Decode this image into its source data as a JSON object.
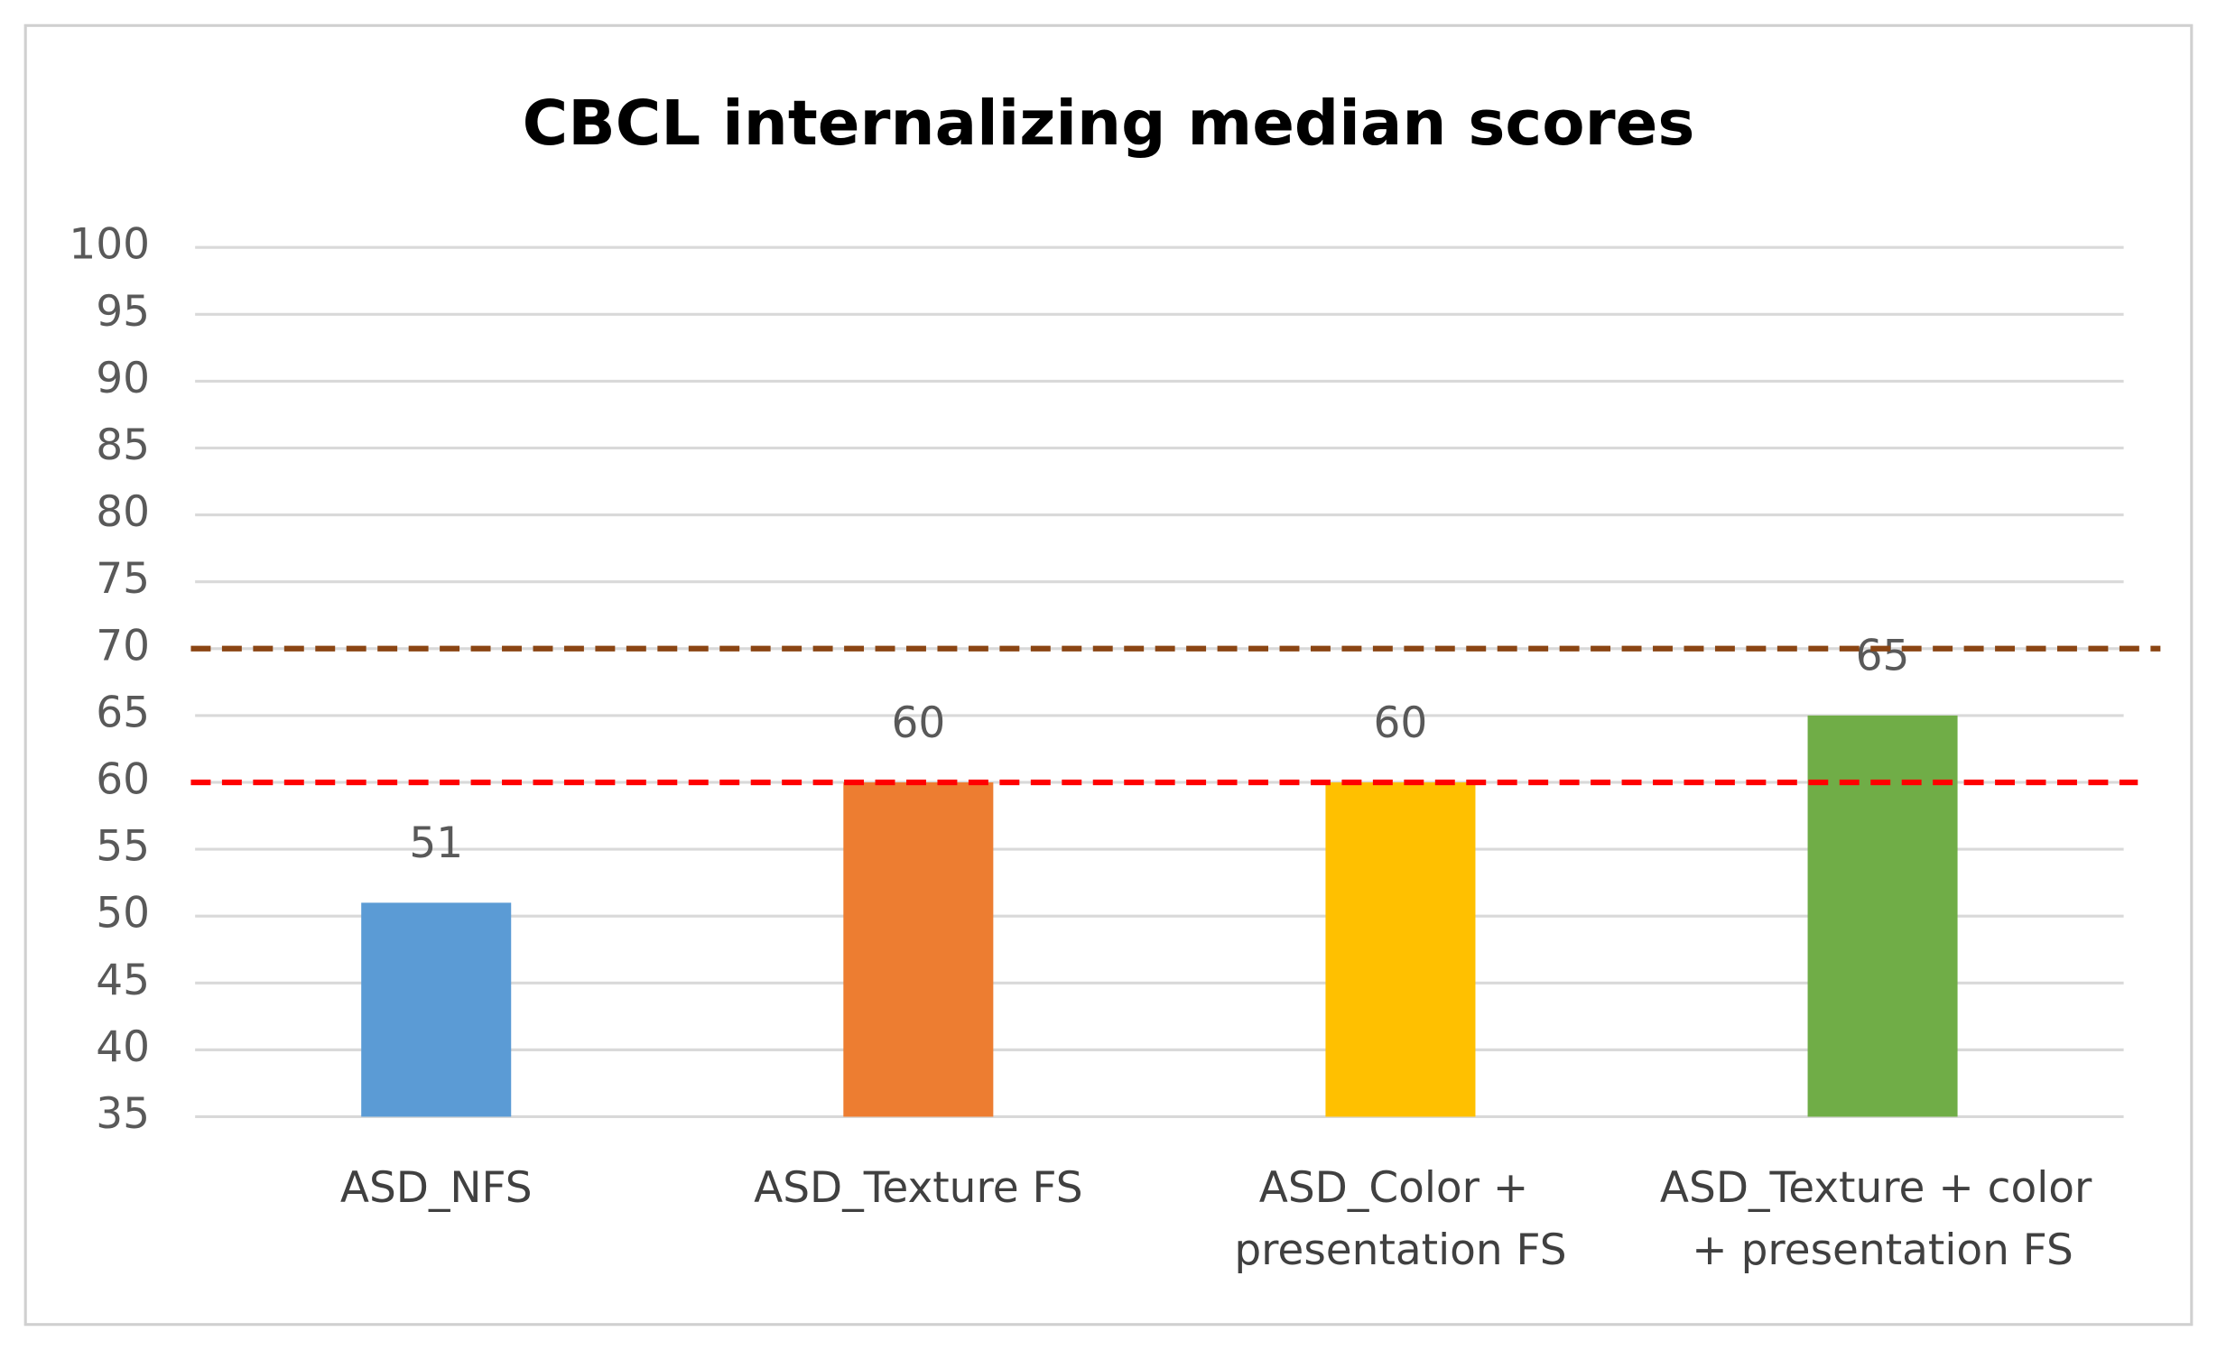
{
  "chart_data": {
    "type": "bar",
    "title": "CBCL internalizing median scores",
    "categories": [
      "ASD_NFS",
      "ASD_Texture FS",
      "ASD_Color + presentation FS",
      "ASD_Texture + color + presentation FS"
    ],
    "values": [
      51,
      60,
      60,
      65
    ],
    "colors": [
      "#5b9bd5",
      "#ed7d31",
      "#ffc000",
      "#70ad47"
    ],
    "ylim": [
      35,
      100
    ],
    "yticks": [
      35,
      40,
      45,
      50,
      55,
      60,
      65,
      70,
      75,
      80,
      85,
      90,
      95,
      100
    ],
    "grid": true,
    "reference_lines": [
      {
        "value": 70,
        "color": "#8b4513"
      },
      {
        "value": 60,
        "color": "#ff0000"
      }
    ]
  }
}
